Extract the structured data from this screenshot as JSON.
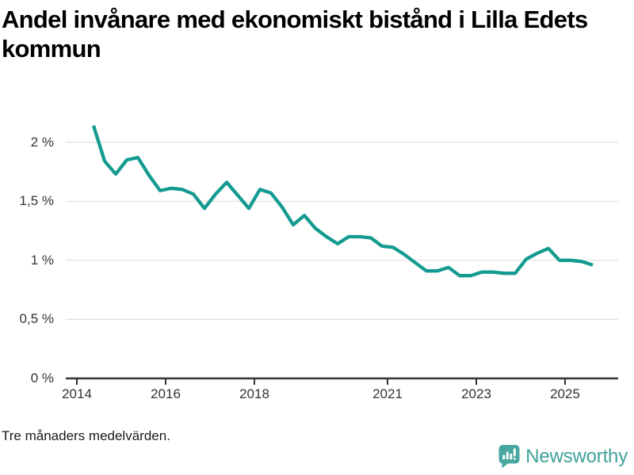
{
  "title": "Andel invånare med ekonomiskt bistånd i Lilla Edets kommun",
  "footnote": "Tre månaders medelvärden.",
  "branding": {
    "name": "Newsworthy",
    "icon": "newsworthy-speech-bubble-bar-chart-icon"
  },
  "colors": {
    "line": "#149b90",
    "grid": "#dcdcdc",
    "axis": "#333333",
    "tick_label": "#333333",
    "title": "#000000",
    "brand_icon": "#48a7a0",
    "brand_text": "#3fa19a",
    "background": "#ffffff"
  },
  "chart_data": {
    "type": "line",
    "title": "Andel invånare med ekonomiskt bistånd i Lilla Edets kommun",
    "subtitle_note": "Tre månaders medelvärden.",
    "unit": "%",
    "grid": "horizontal",
    "legend": "none",
    "ylim": [
      0,
      2.2
    ],
    "xlim_years": [
      2013.75,
      2026.4
    ],
    "y_ticks": [
      {
        "label": "2 %",
        "value": 2
      },
      {
        "label": "1,5 %",
        "value": 1.5
      },
      {
        "label": "1 %",
        "value": 1
      },
      {
        "label": "0,5 %",
        "value": 0.5
      },
      {
        "label": "0 %",
        "value": 0
      }
    ],
    "x_ticks": [
      {
        "label": "2014",
        "year": 2014
      },
      {
        "label": "2016",
        "year": 2016
      },
      {
        "label": "2018",
        "year": 2018
      },
      {
        "label": "2021",
        "year": 2021
      },
      {
        "label": "2023",
        "year": 2023
      },
      {
        "label": "2025",
        "year": 2025
      }
    ],
    "series": [
      {
        "name": "Andel invånare med ekonomiskt bistånd",
        "x": [
          "2014-Q2",
          "2014-Q3",
          "2014-Q4",
          "2015-Q1",
          "2015-Q2",
          "2015-Q3",
          "2015-Q4",
          "2016-Q1",
          "2016-Q2",
          "2016-Q3",
          "2016-Q4",
          "2017-Q1",
          "2017-Q2",
          "2017-Q3",
          "2017-Q4",
          "2018-Q1",
          "2018-Q2",
          "2018-Q3",
          "2018-Q4",
          "2019-Q1",
          "2019-Q2",
          "2019-Q3",
          "2019-Q4",
          "2020-Q1",
          "2020-Q2",
          "2020-Q3",
          "2020-Q4",
          "2021-Q1",
          "2021-Q2",
          "2021-Q3",
          "2021-Q4",
          "2022-Q1",
          "2022-Q2",
          "2022-Q3",
          "2022-Q4",
          "2023-Q1",
          "2023-Q2",
          "2023-Q3",
          "2023-Q4",
          "2024-Q1",
          "2024-Q2",
          "2024-Q3",
          "2024-Q4",
          "2025-Q1",
          "2025-Q2",
          "2025-Q3"
        ],
        "values": [
          2.14,
          1.84,
          1.73,
          1.85,
          1.87,
          1.72,
          1.59,
          1.61,
          1.6,
          1.56,
          1.44,
          1.56,
          1.66,
          1.55,
          1.44,
          1.6,
          1.57,
          1.45,
          1.3,
          1.38,
          1.27,
          1.2,
          1.14,
          1.2,
          1.2,
          1.19,
          1.12,
          1.11,
          1.05,
          0.98,
          0.91,
          0.91,
          0.94,
          0.87,
          0.87,
          0.9,
          0.9,
          0.89,
          0.89,
          1.01,
          1.06,
          1.1,
          1.0,
          1.0,
          0.99,
          0.96
        ]
      }
    ]
  }
}
